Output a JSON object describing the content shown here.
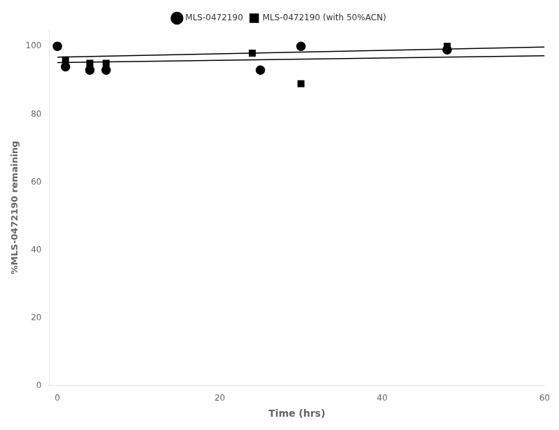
{
  "chart_data": {
    "type": "scatter",
    "xlabel": "Time (hrs)",
    "ylabel": "%MLS-0472190 remaining",
    "xlim": [
      -1,
      60
    ],
    "ylim": [
      0,
      105
    ],
    "xticks": [
      0,
      20,
      40,
      60
    ],
    "yticks": [
      0,
      20,
      40,
      60,
      80,
      100
    ],
    "grid": false,
    "legend": "top",
    "color": "#000000",
    "series": [
      {
        "name": "MLS-0472190",
        "marker": "circle",
        "color": "#000000",
        "x": [
          0,
          1,
          4,
          6,
          25,
          30,
          48
        ],
        "values": [
          100,
          94,
          93,
          93,
          93,
          100,
          99
        ],
        "trendline": {
          "x": [
            0,
            60
          ],
          "values": [
            95.2,
            97.2
          ]
        }
      },
      {
        "name": "MLS-0472190 (with 50%ACN)",
        "marker": "square",
        "color": "#000000",
        "x": [
          0,
          1,
          4,
          6,
          24,
          30,
          48
        ],
        "values": [
          100,
          96,
          95,
          95,
          98,
          89,
          100
        ],
        "trendline": {
          "x": [
            0,
            60
          ],
          "values": [
            96.8,
            99.8
          ]
        }
      }
    ]
  }
}
